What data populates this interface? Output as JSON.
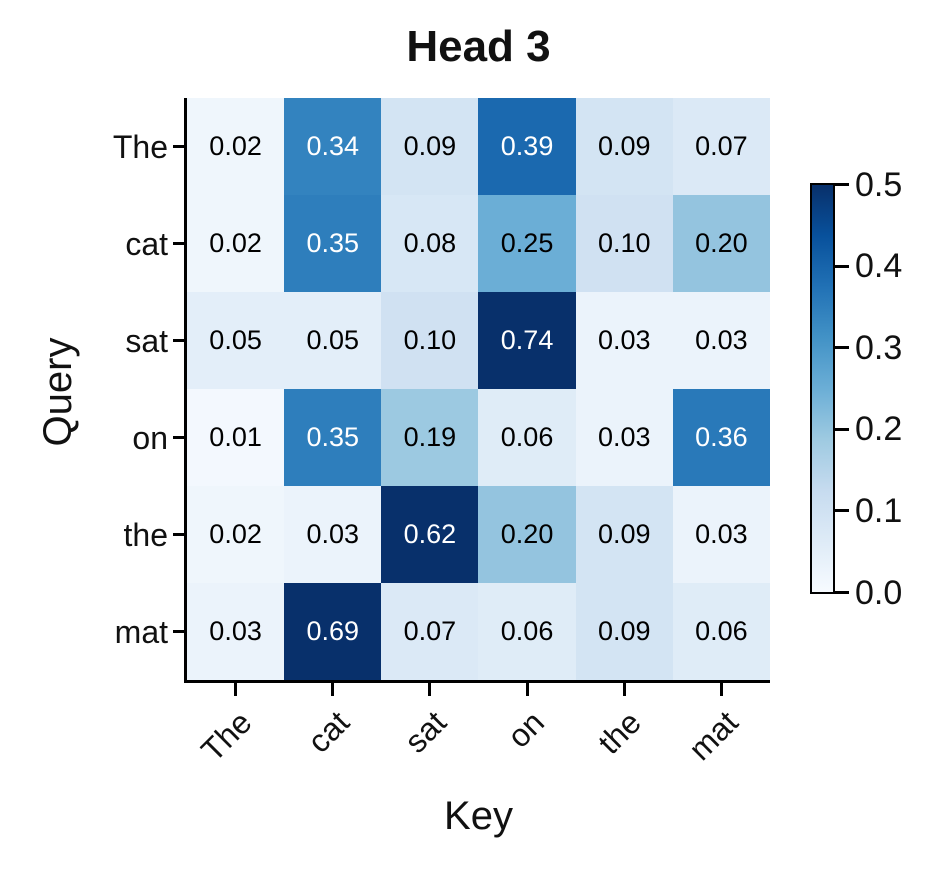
{
  "chart_data": {
    "type": "heatmap",
    "title": "Head 3",
    "xlabel": "Key",
    "ylabel": "Query",
    "x_ticklabels": [
      "The",
      "cat",
      "sat",
      "on",
      "the",
      "mat"
    ],
    "y_ticklabels": [
      "The",
      "cat",
      "sat",
      "on",
      "the",
      "mat"
    ],
    "values": [
      [
        0.02,
        0.34,
        0.09,
        0.39,
        0.09,
        0.07
      ],
      [
        0.02,
        0.35,
        0.08,
        0.25,
        0.1,
        0.2
      ],
      [
        0.05,
        0.05,
        0.1,
        0.74,
        0.03,
        0.03
      ],
      [
        0.01,
        0.35,
        0.19,
        0.06,
        0.03,
        0.36
      ],
      [
        0.02,
        0.03,
        0.62,
        0.2,
        0.09,
        0.03
      ],
      [
        0.03,
        0.69,
        0.07,
        0.06,
        0.09,
        0.06
      ]
    ],
    "value_decimals": 2,
    "vmin": 0.0,
    "vmax": 0.5,
    "grid": false,
    "legend_position": "colorbar-right",
    "colorbar": {
      "ticks": [
        0.0,
        0.1,
        0.2,
        0.3,
        0.4,
        0.5
      ],
      "tick_labels": [
        "0.0",
        "0.1",
        "0.2",
        "0.3",
        "0.4",
        "0.5"
      ]
    },
    "colormap": {
      "name": "Blues",
      "stops": [
        [
          0.0,
          "#f7fbff"
        ],
        [
          0.125,
          "#deebf7"
        ],
        [
          0.25,
          "#c6dbef"
        ],
        [
          0.375,
          "#9ecae1"
        ],
        [
          0.5,
          "#6baed6"
        ],
        [
          0.625,
          "#4292c6"
        ],
        [
          0.75,
          "#2171b5"
        ],
        [
          0.875,
          "#08519c"
        ],
        [
          1.0,
          "#08306b"
        ]
      ]
    },
    "cell_text_light": "#ffffff",
    "cell_text_dark": "#000000",
    "white_text_threshold": 0.3,
    "axis_color": "#000000"
  }
}
